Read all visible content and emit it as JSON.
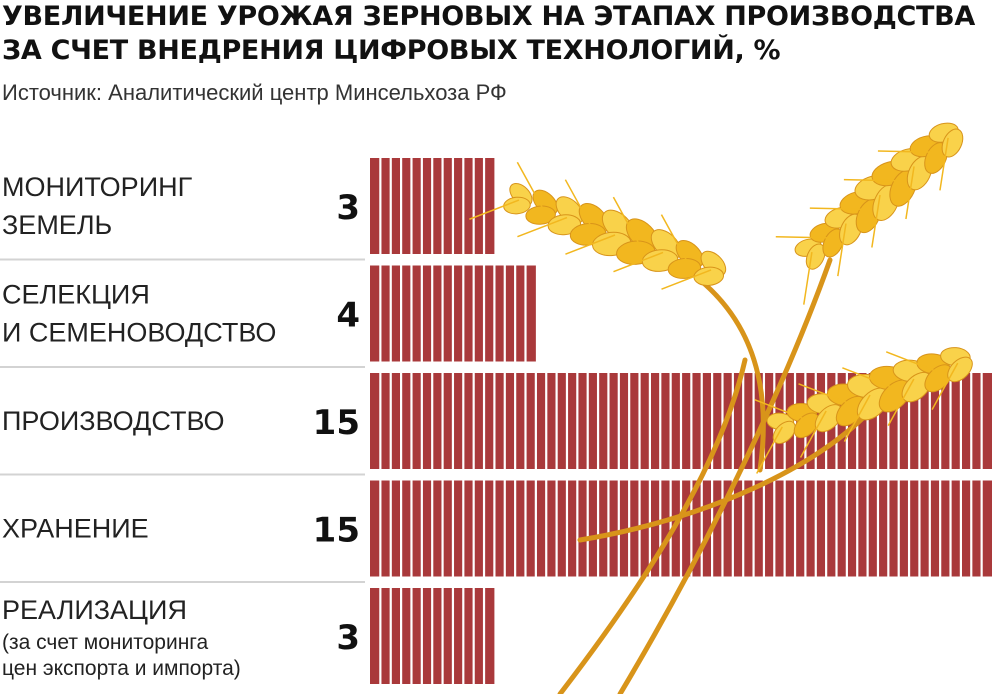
{
  "title_line1": "УВЕЛИЧЕНИЕ УРОЖАЯ ЗЕРНОВЫХ НА ЭТАПАХ ПРОИЗВОДСТВА",
  "title_line2": "ЗА СЧЕТ ВНЕДРЕНИЯ ЦИФРОВЫХ ТЕХНОЛОГИЙ, %",
  "source": "Источник: Аналитический центр Минсельхоза РФ",
  "colors": {
    "bar": "#a9393b",
    "bar_divider": "#ffffff",
    "separator": "#d3d3d3",
    "wheat": "#f2b71f",
    "wheat_dark": "#d8941a",
    "wheat_light": "#f9d24a"
  },
  "chart_data": {
    "type": "bar",
    "orientation": "horizontal",
    "title": "УВЕЛИЧЕНИЕ УРОЖАЯ ЗЕРНОВЫХ НА ЭТАПАХ ПРОИЗВОДСТВА ЗА СЧЕТ ВНЕДРЕНИЯ ЦИФРОВЫХ ТЕХНОЛОГИЙ, %",
    "categories": [
      {
        "lines": [
          "МОНИТОРИНГ",
          "ЗЕМЕЛЬ"
        ],
        "small_lines": []
      },
      {
        "lines": [
          "СЕЛЕКЦИЯ",
          "И СЕМЕНОВОДСТВО"
        ],
        "small_lines": []
      },
      {
        "lines": [
          "ПРОИЗВОДСТВО"
        ],
        "small_lines": []
      },
      {
        "lines": [
          "ХРАНЕНИЕ"
        ],
        "small_lines": []
      },
      {
        "lines": [
          "РЕАЛИЗАЦИЯ"
        ],
        "small_lines": [
          "(за счет мониторинга",
          "цен экспорта и импорта)"
        ]
      }
    ],
    "values": [
      3,
      4,
      15,
      15,
      3
    ],
    "value_labels": [
      "3",
      "4",
      "15",
      "15",
      "3"
    ],
    "xlim": [
      0,
      15
    ],
    "units_per_value": 4
  }
}
